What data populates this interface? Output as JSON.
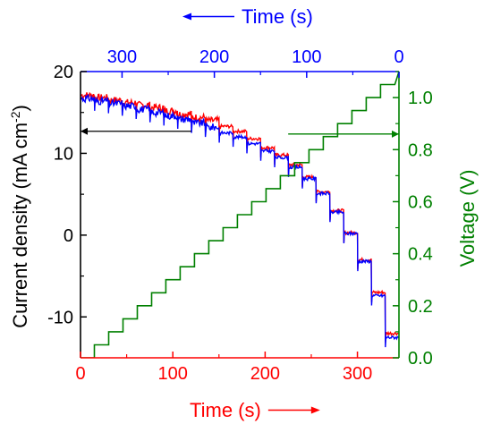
{
  "chart_data": {
    "type": "line",
    "colors": {
      "bottom_axis": "#ff0000",
      "top_axis": "#0000ff",
      "left_axis": "#000000",
      "right_axis": "#008000",
      "voltage": "#008000",
      "forward": "#ff0000",
      "reverse": "#0000ff"
    },
    "x_bottom": {
      "label": "Time (s)",
      "range": [
        0,
        345
      ],
      "ticks": [
        0,
        100,
        200,
        300
      ],
      "arrow": "right"
    },
    "x_top": {
      "label": "Time (s)",
      "range": [
        345,
        0
      ],
      "ticks": [
        300,
        200,
        100,
        0
      ],
      "arrow": "left"
    },
    "y_left": {
      "label_main": "Current density (mA cm",
      "label_sup": "-2",
      "label_close": ")",
      "range": [
        -15,
        20
      ],
      "ticks": [
        -10,
        0,
        10,
        20
      ]
    },
    "y_right": {
      "label": "Voltage (V)",
      "range": [
        0.0,
        1.1
      ],
      "ticks": [
        0.0,
        0.2,
        0.4,
        0.6,
        0.8,
        1.0
      ],
      "tick_labels": [
        "0.0",
        "0.2",
        "0.4",
        "0.6",
        "0.8",
        "1.0"
      ]
    },
    "voltage_steps": {
      "x_start": 0,
      "x_first_step": 15,
      "step_duration": 15.5,
      "v_start": 0.0,
      "v_step": 0.05,
      "v_max": 1.05
    },
    "current_steps": {
      "times": [
        0,
        15,
        30,
        45,
        60,
        75,
        90,
        105,
        120,
        135,
        150,
        165,
        180,
        195,
        210,
        225,
        240,
        255,
        270,
        285,
        300,
        315,
        330
      ],
      "forward_values": [
        17.1,
        16.8,
        16.5,
        16.2,
        15.9,
        15.6,
        15.2,
        14.8,
        14.4,
        14.0,
        13.3,
        12.7,
        11.8,
        10.7,
        9.8,
        8.6,
        7.1,
        5.3,
        3.0,
        0.3,
        -3.0,
        -7.0,
        -12.0
      ],
      "reverse_values": [
        16.7,
        16.4,
        16.1,
        15.8,
        15.4,
        15.0,
        14.6,
        14.2,
        13.7,
        13.2,
        12.5,
        12.0,
        11.2,
        10.3,
        9.5,
        8.3,
        6.9,
        5.1,
        2.8,
        0.2,
        -3.2,
        -7.4,
        -12.5
      ]
    },
    "annotation_arrows": [
      {
        "from_x": 120,
        "to_x": 0,
        "y": 12.7,
        "axis": "left",
        "color": "#000000"
      },
      {
        "from_x": 225,
        "to_x": 345,
        "y": 0.86,
        "axis": "right",
        "color": "#008000"
      }
    ]
  }
}
